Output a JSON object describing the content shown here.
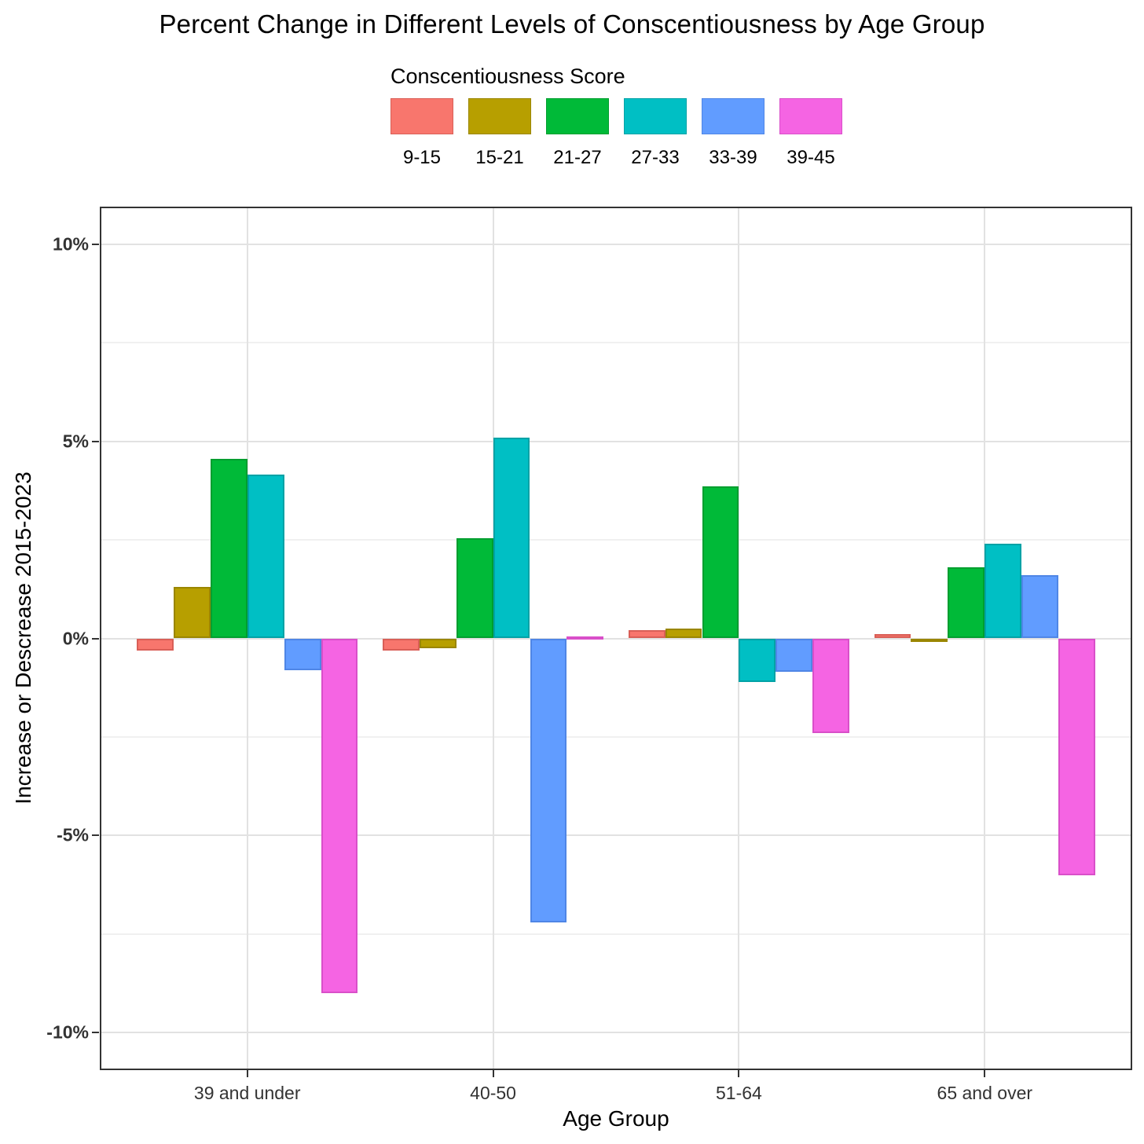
{
  "title": "Percent Change in Different Levels of Conscentiousness by Age Group",
  "legend": {
    "title": "Conscentiousness Score",
    "items": [
      {
        "label": "9-15",
        "color": "#F8766D",
        "edge": "#d95f57"
      },
      {
        "label": "15-21",
        "color": "#B79F00",
        "edge": "#9a8600"
      },
      {
        "label": "21-27",
        "color": "#00BA38",
        "edge": "#009e2f"
      },
      {
        "label": "27-33",
        "color": "#00BFC4",
        "edge": "#00a2a6"
      },
      {
        "label": "33-39",
        "color": "#619CFF",
        "edge": "#4f86e6"
      },
      {
        "label": "39-45",
        "color": "#F564E3",
        "edge": "#d94fc9"
      }
    ]
  },
  "chart_data": {
    "type": "bar",
    "title": "Percent Change in Different Levels of Conscentiousness by Age Group",
    "xlabel": "Age Group",
    "ylabel": "Increase or Descrease 2015-2023",
    "legend_title": "Conscentiousness Score",
    "legend_position": "top",
    "grid": true,
    "categories": [
      "39 and under",
      "40-50",
      "51-64",
      "65 and over"
    ],
    "series": [
      {
        "name": "9-15",
        "color": "#F8766D",
        "edge": "#d95f57",
        "values": [
          -0.3,
          -0.3,
          0.2,
          0.1
        ]
      },
      {
        "name": "15-21",
        "color": "#B79F00",
        "edge": "#9a8600",
        "values": [
          1.3,
          -0.25,
          0.25,
          -0.05
        ]
      },
      {
        "name": "21-27",
        "color": "#00BA38",
        "edge": "#009e2f",
        "values": [
          4.55,
          2.55,
          3.85,
          1.8
        ]
      },
      {
        "name": "27-33",
        "color": "#00BFC4",
        "edge": "#00a2a6",
        "values": [
          4.15,
          5.1,
          -1.1,
          2.4
        ]
      },
      {
        "name": "33-39",
        "color": "#619CFF",
        "edge": "#4f86e6",
        "values": [
          -0.8,
          -7.2,
          -0.85,
          1.6
        ]
      },
      {
        "name": "39-45",
        "color": "#F564E3",
        "edge": "#d94fc9",
        "values": [
          -9.0,
          0.05,
          -2.4,
          -6.0
        ]
      }
    ],
    "y_ticks": [
      10,
      5,
      0,
      -5,
      -10
    ],
    "y_tick_labels": [
      "10%",
      "5%",
      "0%",
      "-5%",
      "-10%"
    ],
    "y_minor_ticks": [
      7.5,
      2.5,
      -2.5,
      -7.5
    ],
    "ylim": [
      -10.95,
      10.95
    ],
    "unit": "percent"
  }
}
